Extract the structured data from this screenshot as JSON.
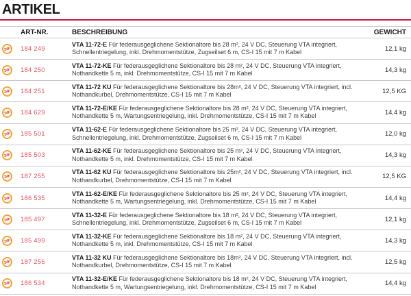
{
  "title": "ARTIKEL",
  "colors": {
    "rule_red": "#c41e3a",
    "art_nr_red": "#e0575f",
    "badge_orange": "#eaa63e",
    "badge_text_red": "#d2383c",
    "separator_gray": "#c8c8c8"
  },
  "table": {
    "headers": {
      "art_nr": "ART-NR.",
      "beschreibung": "BESCHREIBUNG",
      "gewicht": "GEWICHT"
    },
    "icon_label": "24h",
    "rows": [
      {
        "art_nr": "184 249",
        "name": "VTA 11-72-E",
        "description": "Für federausgeglichene Sektionaltore bis 28 m², 24 V DC, Steuerung VTA integriert, Schnellentriegelung, inkl. Drehmomentstütze, Zugseilset 6 m, CS-I 15 mit 7 m Kabel",
        "weight": "12,1 kg"
      },
      {
        "art_nr": "184 250",
        "name": "VTA 11-72-KE",
        "description": "Für federausgeglichene Sektionaltore bis 28 m², 24 V DC, Steuerung VTA integriert, Nothandkette 5 m, inkl. Drehmomentstütze, CS-I 15 mit 7 m Kabel",
        "weight": "14,3 kg"
      },
      {
        "art_nr": "184 251",
        "name": "VTA 11-72 KU",
        "description": "Für federausgeglichene Sektionaltore bis 28m², 24 V DC, Steuerung VTA integriert, incl. Nothandkurbel, Drehmomentstütze, CS-I 15 mit 7 m Kabel",
        "weight": "12,5 KG"
      },
      {
        "art_nr": "184 629",
        "name": "VTA 11-72-E/KE",
        "description": "Für federausgeglichene Sektionaltore bis 28 m², 24 V DC, Steuerung VTA integriert, Nothandkette 5 m, Wartungsentriegelung, inkl. Drehmomentstütze, CS-I 15 mit 7 m Kabel",
        "weight": "14,4 kg"
      },
      {
        "art_nr": "185 501",
        "name": "VTA 11-62-E",
        "description": "Für federausgeglichene Sektionaltore bis 25 m², 24 V DC, Steuerung VTA integriert, Schnellentriegelung, inkl. Drehmomentstütze, Zugseilset 6 m, CS-I 15 mit 7 m Kabel",
        "weight": "12,0 kg"
      },
      {
        "art_nr": "185 503",
        "name": "VTA 11-62-KE",
        "description": "Für federausgeglichene Sektionaltore bis 25 m², 24 V DC, Steuerung VTA integriert, Nothandkette 5 m, inkl. Drehmomentstütze, CS-I 15 mit 7 m Kabel",
        "weight": "14,3 kg"
      },
      {
        "art_nr": "187 255",
        "name": "VTA 11-62 KU",
        "description": "Für federausgeglichene Sektionaltore bis 25m², 24 V DC, Steuerung VTA integriert, incl. Nothandkurbel, Drehmomentstütze, CS-I 15 mit 7 m Kabel",
        "weight": "12,5 KG"
      },
      {
        "art_nr": "186 535",
        "name": "VTA 11-62-E/KE",
        "description": "Für federausgeglichene Sektionaltore bis 25 m², 24 V DC, Steuerung VTA integriert, Nothandkette 5 m, Wartungsentriegelung, inkl. Drehmomentstütze, CS-I 15 mit 7 m Kabel",
        "weight": "14,4 kg"
      },
      {
        "art_nr": "185 497",
        "name": "VTA 11-32-E",
        "description": "Für federausgeglichene Sektionaltore bis 18 m², 24 V DC, Steuerung VTA integriert, Schnellentriegelung, inkl. Drehmomentstütze, Zugseilset 6 m, CS-I 15 mit 7 m Kabel",
        "weight": "12,1 kg"
      },
      {
        "art_nr": "185 499",
        "name": "VTA 11-32-KE",
        "description": "Für federausgeglichene Sektionaltore bis 18 m², 24 V DC, Steuerung VTA integriert, Nothandkette 5 m, inkl. Drehmomentstütze, CS-I 15 mit 7 m Kabel",
        "weight": "14,3 kg"
      },
      {
        "art_nr": "187 256",
        "name": "VTA 11-32 KU",
        "description": "Für federausgeglichene Sektionaltore bis 18m², 24 V DC, Steuerung VTA integriert, incl. Nothandkurbel, Drehmomentstütze, CS-I 15 mit 7 m Kabel",
        "weight": "12,5 kg"
      },
      {
        "art_nr": "186 534",
        "name": "VTA 11-32-E/KE",
        "description": "Für federausgeglichene Sektionaltore bis 18 m², 24 V DC, Steuerung VTA integriert, Nothandkette 5 m, Wartungsentriegelung, inkl. Drehmomentstütze, CS-I 15 mit 7 m Kabel",
        "weight": "14,4 kg"
      }
    ]
  }
}
